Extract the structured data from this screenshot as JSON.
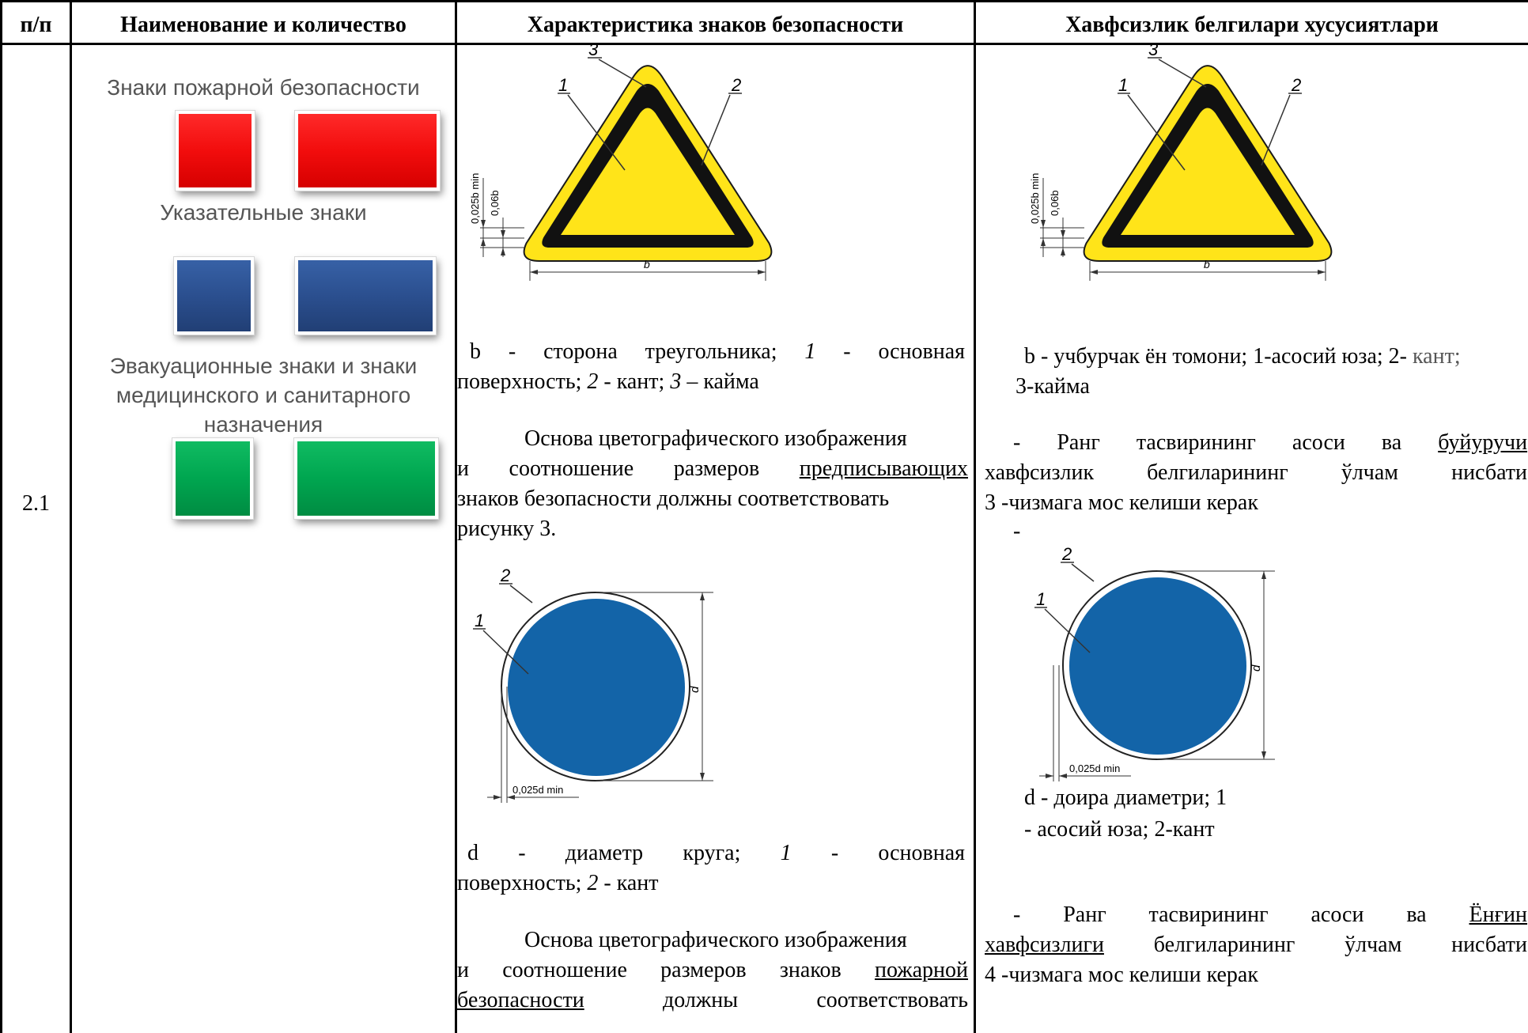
{
  "table": {
    "headers": {
      "num": "п/п",
      "name": "Наименование и количество",
      "char_ru": "Характеристика знаков безопасности",
      "char_uz": "Хавфсизлик белгилари хусусиятлари"
    },
    "row_number": "2.1"
  },
  "name_col": {
    "fire_signs": "Знаки пожарной безопасности",
    "pointer_signs": "Указательные знаки",
    "evac_line1": "Эвакуационные знаки и знаки",
    "evac_line2": "медицинского и санитарного",
    "evac_line3": "назначения"
  },
  "figure_labels": {
    "n1": "1",
    "n2": "2",
    "n3": "3",
    "b": "b",
    "d": "d",
    "dim_0025b": "0,025b min",
    "dim_006b": "0,06b",
    "dim_0025d": "0,025d min"
  },
  "ru": {
    "tri_caption": {
      "w1": "b -",
      "w2": "сторона",
      "w3": "треугольника;",
      "w4": "1",
      "w5": "-",
      "w6": "основная",
      "l2a": "поверхность;",
      "l2b": "2",
      "l2c": "- кант;",
      "l2d": "3",
      "l2e": "– кайма"
    },
    "para1": {
      "l1": "Основа цветографического изображения",
      "l2a": "и соотношение размеров",
      "l2b": "предписывающих",
      "l3": "знаков безопасности должны соответствовать",
      "l4": "рисунку 3."
    },
    "circle_caption": {
      "w1": "d -",
      "w2": "диаметр",
      "w3": "круга;",
      "w4": "1",
      "w5": "-",
      "w6": "основная",
      "l2a": "поверхность;",
      "l2b": "2",
      "l2c": "- кант"
    },
    "para2": {
      "l1": "Основа цветографического изображения",
      "l2a": "и соотношение размеров знаков",
      "l2b": "пожарной",
      "l3a": "безопасности",
      "l3b": "должны",
      "l3c": "соответствовать"
    }
  },
  "uz": {
    "tri_caption_l1a": "b - учбурчак ён томони; 1-асосий юза; 2-",
    "tri_caption_l1b": "кант;",
    "tri_caption_l2": "3-кайма",
    "para1": {
      "w1": "-",
      "w2": "Ранг",
      "w3": "тасвирининг",
      "w4": "асоси",
      "w5": "ва",
      "w6": "буйуручи",
      "l2a": "хавфсизлик",
      "l2b": "белгиларининг",
      "l2c": "ўлчам",
      "l2d": "нисбати",
      "l3": "3 -чизмага мос келиши керак",
      "dash": "-"
    },
    "circle_caption_l1": "d - доира диаметри; 1",
    "circle_caption_l2": "- асосий юза; 2-кант",
    "para2": {
      "w1": "-",
      "w2": "Ранг",
      "w3": "тасвирининг",
      "w4": "асоси",
      "w5": "ва",
      "w6": "Ёнғин",
      "l2a": "хавфсизлиги",
      "l2b": "белгиларининг",
      "l2c": "ўлчам",
      "l2d": "нисбати",
      "l3": "4 -чизмага мос келиши керак"
    }
  },
  "colors": {
    "fire_red": "#f20d0d",
    "pointer_blue": "#2b4f8f",
    "evac_green": "#00a650",
    "warning_yellow": "#ffe419",
    "circle_blue": "#1364a8"
  }
}
